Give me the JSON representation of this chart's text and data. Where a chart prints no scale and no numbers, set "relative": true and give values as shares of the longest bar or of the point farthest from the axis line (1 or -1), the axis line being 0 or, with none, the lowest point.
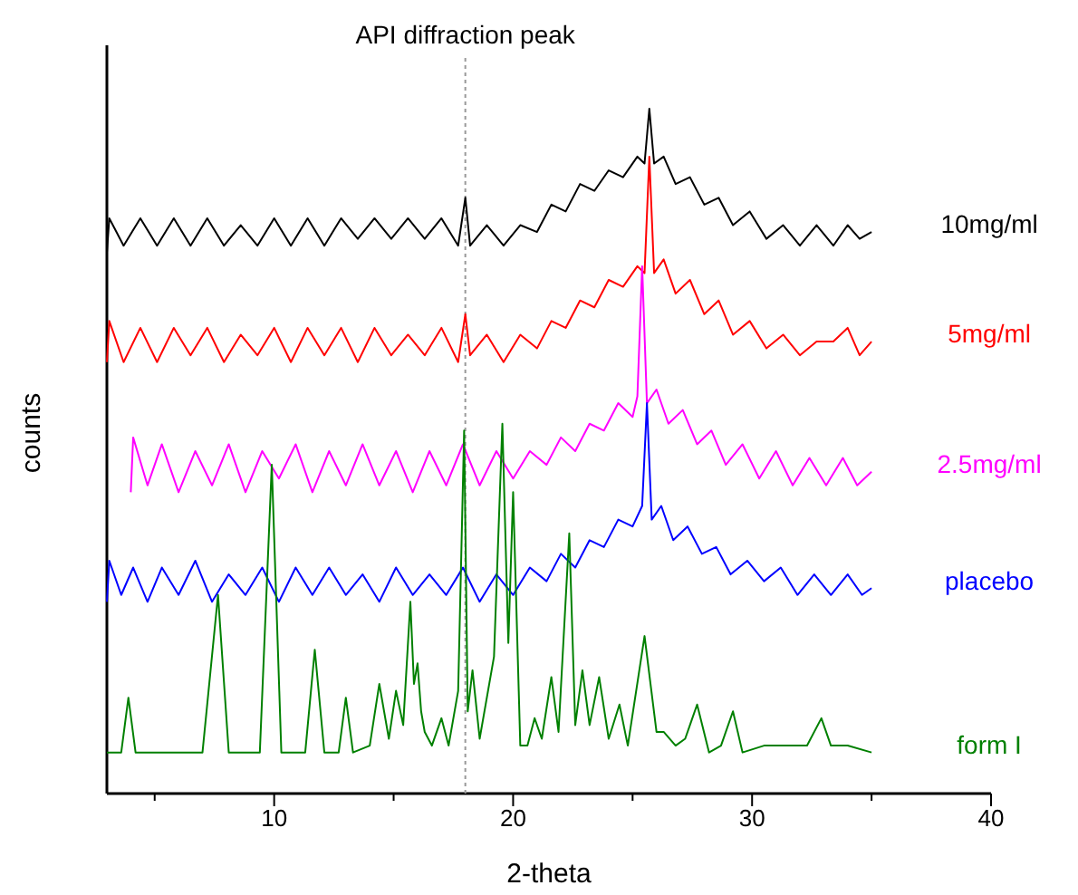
{
  "chart_data": {
    "type": "line",
    "xlabel": "2-theta",
    "ylabel": "counts",
    "relative": true,
    "xlim": [
      3,
      40
    ],
    "xticks": [
      {
        "value": 5,
        "label": null
      },
      10,
      {
        "value": 15,
        "label": null
      },
      20,
      {
        "value": 25,
        "label": null
      },
      30,
      {
        "value": 35,
        "label": null
      },
      40
    ],
    "ref_lines": [
      {
        "axis": "x",
        "value": 18,
        "label": "API diffraction peak",
        "color": "#999999",
        "line_style": "dotted"
      }
    ],
    "series": [
      {
        "name": "10mg/ml",
        "color": "#000000",
        "x": [
          3,
          3.1,
          3.7,
          4.4,
          5.1,
          5.8,
          6.5,
          7.2,
          7.9,
          8.6,
          9.3,
          10,
          10.7,
          11.4,
          12.1,
          12.8,
          13.5,
          14.2,
          14.9,
          15.6,
          16.3,
          17,
          17.7,
          18,
          18.2,
          18.9,
          19.6,
          20.3,
          21,
          21.6,
          22.2,
          22.8,
          23.4,
          24,
          24.6,
          25.2,
          25.5,
          25.7,
          25.9,
          26.3,
          26.8,
          27.4,
          28,
          28.6,
          29.2,
          29.9,
          30.6,
          31.3,
          32,
          32.7,
          33.4,
          34,
          34.5,
          35
        ],
        "values": [
          0.79,
          0.84,
          0.8,
          0.84,
          0.8,
          0.84,
          0.8,
          0.84,
          0.8,
          0.83,
          0.8,
          0.84,
          0.8,
          0.84,
          0.8,
          0.84,
          0.81,
          0.84,
          0.81,
          0.84,
          0.81,
          0.84,
          0.8,
          0.87,
          0.8,
          0.83,
          0.8,
          0.83,
          0.82,
          0.86,
          0.85,
          0.89,
          0.88,
          0.91,
          0.9,
          0.93,
          0.92,
          1,
          0.92,
          0.93,
          0.89,
          0.9,
          0.86,
          0.87,
          0.83,
          0.85,
          0.81,
          0.83,
          0.8,
          0.83,
          0.8,
          0.83,
          0.81,
          0.82
        ]
      },
      {
        "name": "5mg/ml",
        "color": "#ff0000",
        "x": [
          3,
          3.1,
          3.7,
          4.4,
          5.1,
          5.8,
          6.5,
          7.2,
          7.9,
          8.6,
          9.3,
          10,
          10.7,
          11.4,
          12.1,
          12.8,
          13.5,
          14.2,
          14.9,
          15.6,
          16.3,
          17,
          17.7,
          18,
          18.2,
          18.9,
          19.6,
          20.3,
          21,
          21.6,
          22.2,
          22.8,
          23.4,
          24,
          24.6,
          25.2,
          25.5,
          25.7,
          25.9,
          26.3,
          26.8,
          27.4,
          28,
          28.6,
          29.2,
          29.9,
          30.6,
          31.3,
          32,
          32.7,
          33.4,
          34,
          34.5,
          35
        ],
        "values": [
          0.63,
          0.69,
          0.63,
          0.68,
          0.63,
          0.68,
          0.64,
          0.68,
          0.63,
          0.67,
          0.64,
          0.68,
          0.63,
          0.68,
          0.64,
          0.68,
          0.63,
          0.68,
          0.64,
          0.67,
          0.64,
          0.68,
          0.63,
          0.7,
          0.64,
          0.67,
          0.63,
          0.67,
          0.65,
          0.69,
          0.68,
          0.72,
          0.71,
          0.75,
          0.74,
          0.77,
          0.76,
          0.93,
          0.76,
          0.78,
          0.73,
          0.75,
          0.7,
          0.72,
          0.67,
          0.69,
          0.65,
          0.67,
          0.64,
          0.66,
          0.66,
          0.68,
          0.64,
          0.66
        ]
      },
      {
        "name": "2.5mg/ml",
        "color": "#ff00ff",
        "x": [
          4,
          4.1,
          4.7,
          5.3,
          6,
          6.7,
          7.4,
          8.1,
          8.8,
          9.5,
          10.2,
          10.9,
          11.6,
          12.3,
          13,
          13.7,
          14.4,
          15.1,
          15.8,
          16.5,
          17.2,
          17.9,
          18.6,
          19.3,
          20,
          20.7,
          21.4,
          22,
          22.6,
          23.2,
          23.8,
          24.4,
          25,
          25.2,
          25.4,
          25.6,
          26,
          26.5,
          27.1,
          27.7,
          28.3,
          28.9,
          29.6,
          30.3,
          31,
          31.7,
          32.4,
          33.1,
          33.8,
          34.4,
          35
        ],
        "values": [
          0.44,
          0.52,
          0.45,
          0.51,
          0.44,
          0.5,
          0.45,
          0.51,
          0.44,
          0.5,
          0.46,
          0.51,
          0.44,
          0.5,
          0.45,
          0.51,
          0.45,
          0.5,
          0.44,
          0.5,
          0.45,
          0.51,
          0.45,
          0.5,
          0.46,
          0.5,
          0.48,
          0.52,
          0.5,
          0.54,
          0.53,
          0.57,
          0.55,
          0.58,
          0.77,
          0.57,
          0.59,
          0.54,
          0.56,
          0.51,
          0.53,
          0.48,
          0.51,
          0.46,
          0.5,
          0.45,
          0.49,
          0.45,
          0.49,
          0.45,
          0.47
        ]
      },
      {
        "name": "placebo",
        "color": "#0000ff",
        "x": [
          3,
          3.1,
          3.6,
          4.1,
          4.7,
          5.3,
          6,
          6.7,
          7.4,
          8.1,
          8.8,
          9.5,
          10.2,
          10.9,
          11.6,
          12.3,
          13,
          13.7,
          14.4,
          15.1,
          15.8,
          16.5,
          17.2,
          17.9,
          18.6,
          19.3,
          20,
          20.7,
          21.4,
          22,
          22.6,
          23.2,
          23.8,
          24.4,
          25,
          25.4,
          25.6,
          25.8,
          26.2,
          26.7,
          27.3,
          27.9,
          28.5,
          29.1,
          29.8,
          30.5,
          31.2,
          31.9,
          32.6,
          33.3,
          34,
          34.6,
          35
        ],
        "values": [
          0.28,
          0.34,
          0.29,
          0.33,
          0.28,
          0.33,
          0.29,
          0.34,
          0.28,
          0.32,
          0.29,
          0.33,
          0.28,
          0.33,
          0.29,
          0.33,
          0.29,
          0.32,
          0.28,
          0.33,
          0.29,
          0.32,
          0.29,
          0.33,
          0.28,
          0.32,
          0.29,
          0.33,
          0.31,
          0.35,
          0.33,
          0.37,
          0.36,
          0.4,
          0.39,
          0.42,
          0.57,
          0.4,
          0.42,
          0.37,
          0.39,
          0.35,
          0.36,
          0.32,
          0.34,
          0.31,
          0.33,
          0.29,
          0.32,
          0.29,
          0.32,
          0.29,
          0.3
        ]
      },
      {
        "name": "form I",
        "color": "#008000",
        "x": [
          3,
          3.6,
          3.9,
          4.2,
          7,
          7.65,
          8.1,
          9.4,
          9.9,
          10.3,
          11.3,
          11.7,
          12.1,
          12.7,
          13,
          13.3,
          14,
          14.4,
          14.8,
          15.1,
          15.4,
          15.7,
          15.85,
          16,
          16.15,
          16.3,
          16.6,
          17,
          17.3,
          17.7,
          17.95,
          18.1,
          18.3,
          18.6,
          19.2,
          19.55,
          19.8,
          20,
          20.3,
          20.6,
          20.9,
          21.2,
          21.6,
          21.9,
          22.35,
          22.6,
          22.9,
          23.2,
          23.6,
          24,
          24.45,
          24.8,
          25.5,
          26,
          26.3,
          26.8,
          27.2,
          27.7,
          28.2,
          28.7,
          29.2,
          29.6,
          30.5,
          31.5,
          32.3,
          32.9,
          33.3,
          34,
          35
        ],
        "values": [
          0.06,
          0.06,
          0.14,
          0.06,
          0.06,
          0.29,
          0.06,
          0.06,
          0.48,
          0.06,
          0.06,
          0.21,
          0.06,
          0.06,
          0.14,
          0.06,
          0.07,
          0.16,
          0.08,
          0.15,
          0.1,
          0.28,
          0.16,
          0.19,
          0.12,
          0.09,
          0.07,
          0.11,
          0.07,
          0.15,
          0.53,
          0.12,
          0.18,
          0.08,
          0.2,
          0.54,
          0.22,
          0.44,
          0.07,
          0.07,
          0.11,
          0.08,
          0.17,
          0.09,
          0.38,
          0.1,
          0.18,
          0.1,
          0.17,
          0.08,
          0.13,
          0.07,
          0.23,
          0.09,
          0.09,
          0.07,
          0.08,
          0.13,
          0.06,
          0.07,
          0.12,
          0.06,
          0.07,
          0.07,
          0.07,
          0.11,
          0.07,
          0.07,
          0.06
        ]
      }
    ]
  }
}
